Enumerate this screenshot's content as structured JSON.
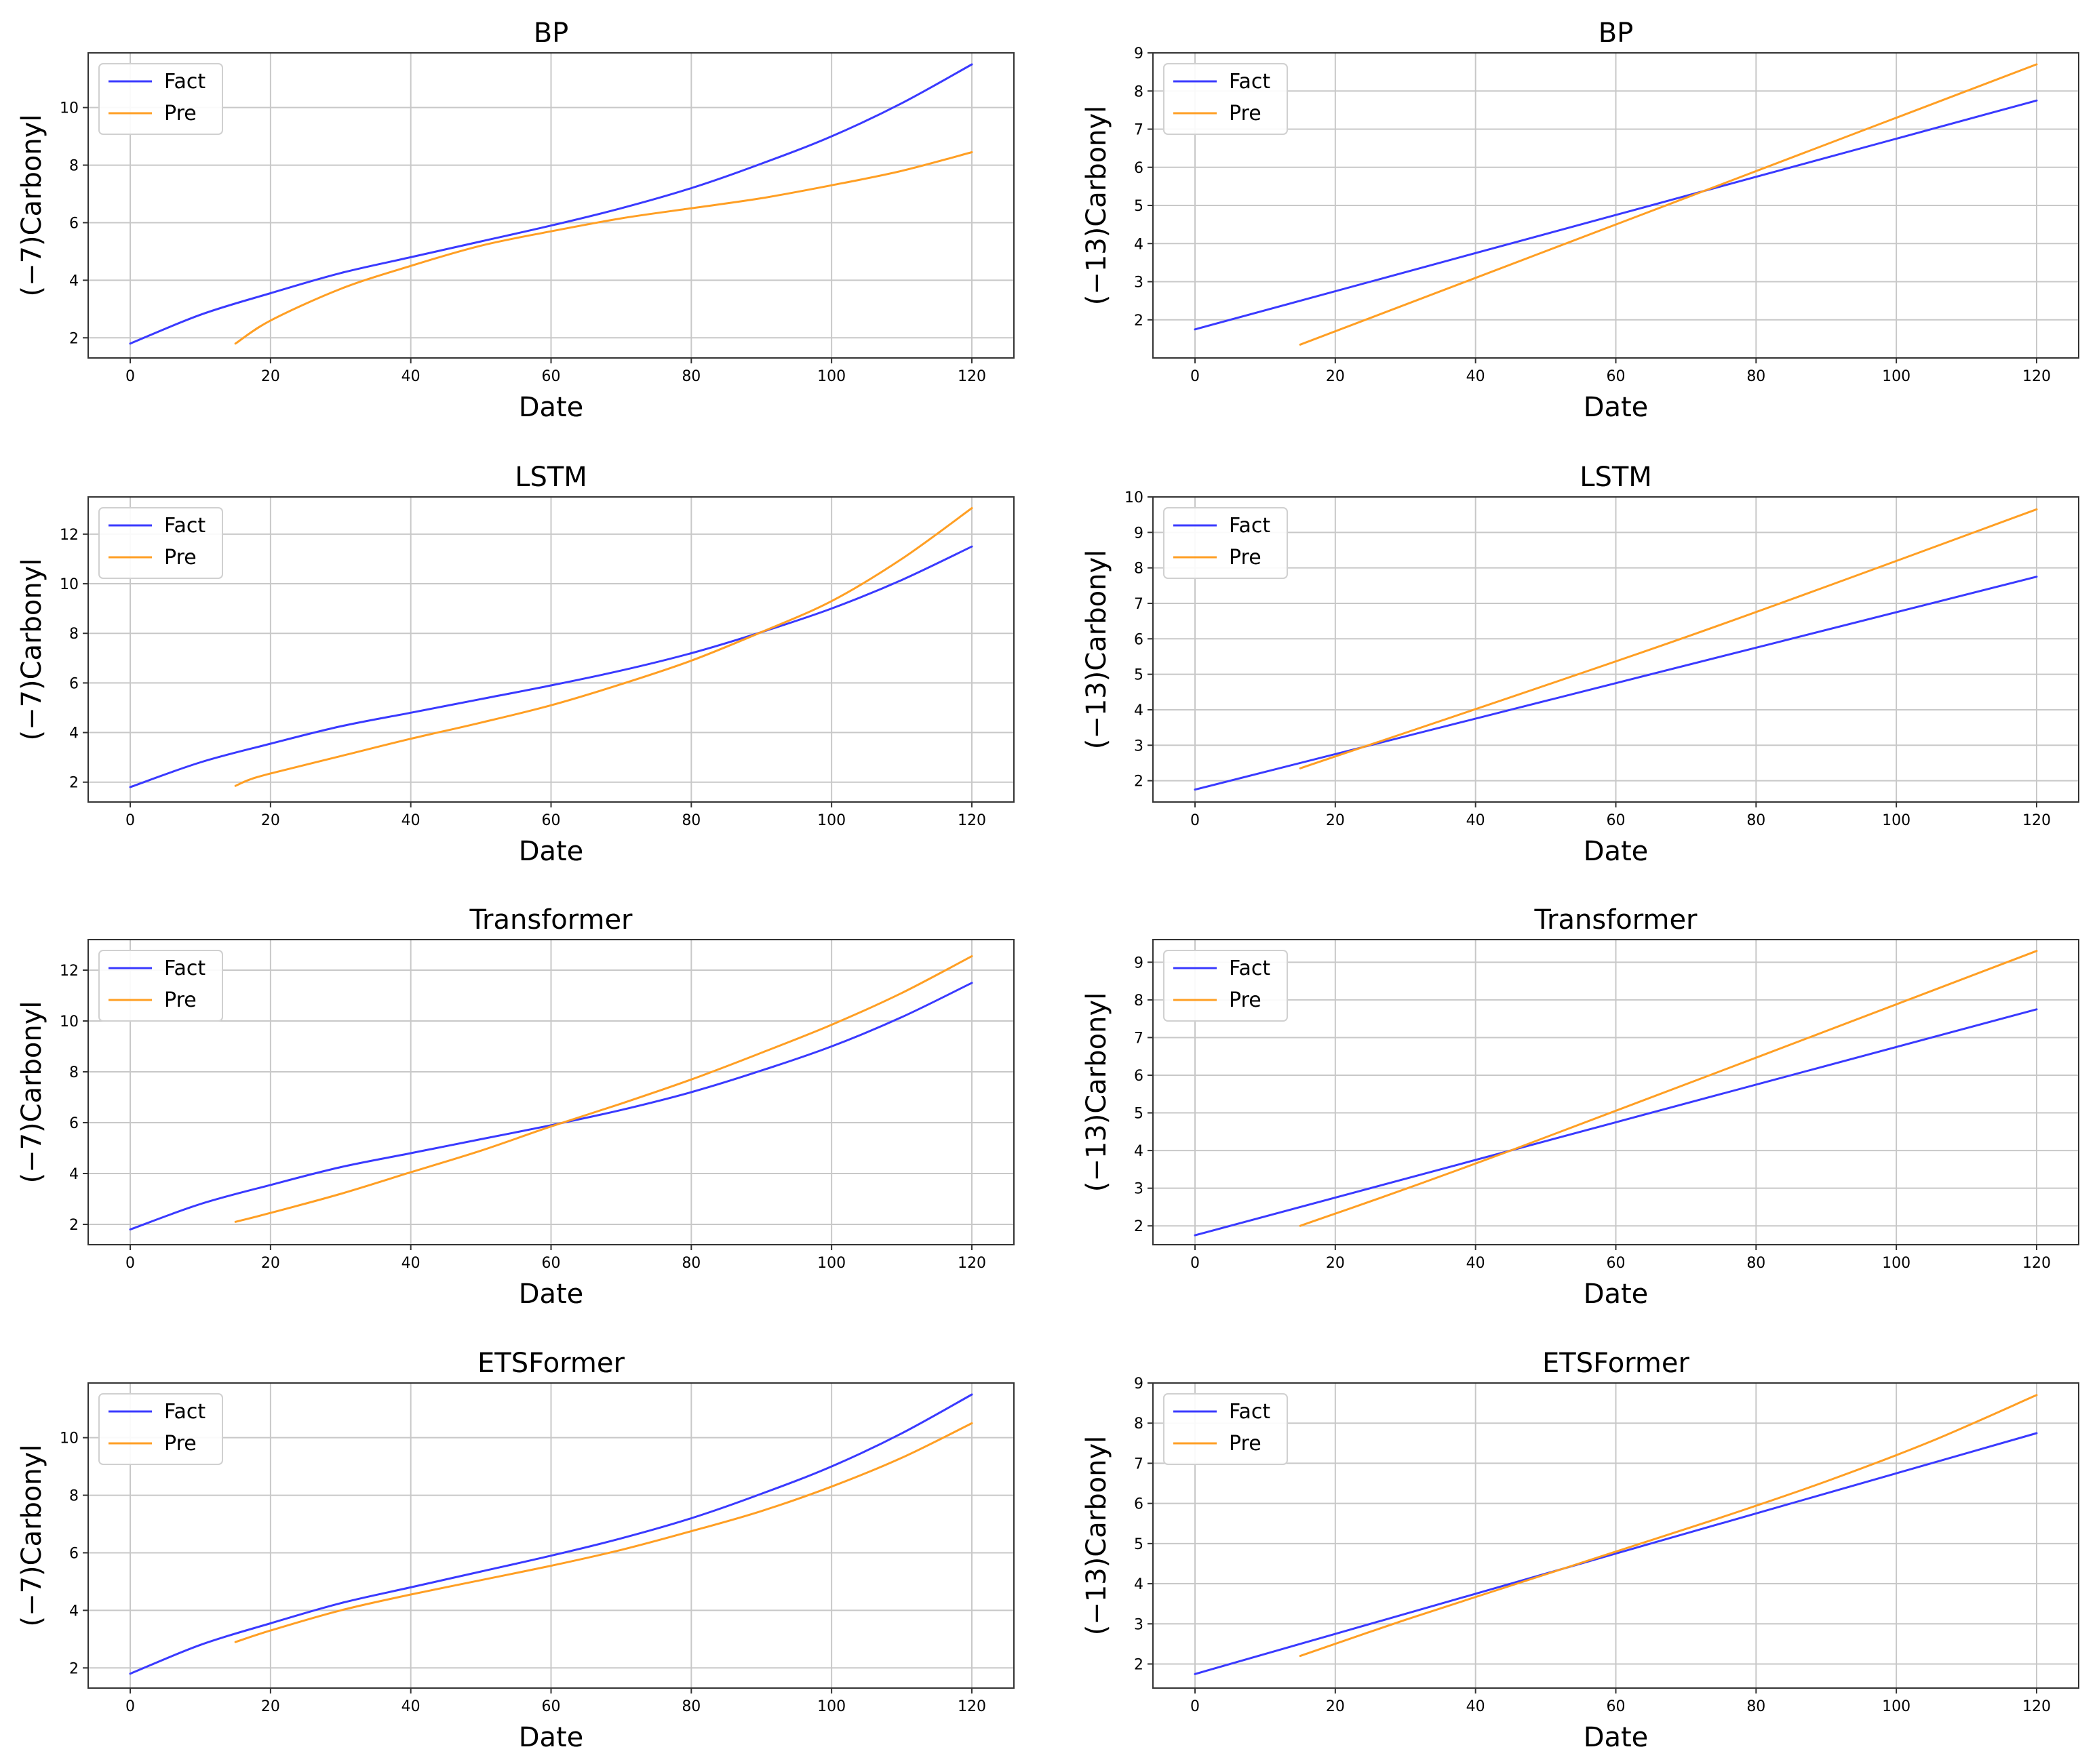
{
  "colors": {
    "fact": "#3a3aff",
    "pre": "#ff9f24",
    "grid": "#c8c8c8",
    "axes": "#333333"
  },
  "chart_data": [
    {
      "type": "line",
      "title": "BP",
      "xlabel": "Date",
      "ylabel": "(−7)Carbonyl",
      "xlim": [
        -6,
        126
      ],
      "ylim": [
        1.3,
        11.9
      ],
      "xticks": [
        0,
        20,
        40,
        60,
        80,
        100,
        120
      ],
      "yticks": [
        2,
        4,
        6,
        8,
        10
      ],
      "grid": true,
      "legend": "top-left",
      "series": [
        {
          "name": "Fact",
          "x": [
            0,
            10,
            20,
            30,
            40,
            50,
            60,
            70,
            80,
            90,
            100,
            110,
            120
          ],
          "y": [
            1.8,
            2.8,
            3.55,
            4.25,
            4.8,
            5.35,
            5.9,
            6.5,
            7.2,
            8.05,
            9.0,
            10.15,
            11.5
          ]
        },
        {
          "name": "Pre",
          "x": [
            15,
            20,
            30,
            40,
            50,
            60,
            70,
            80,
            90,
            100,
            110,
            120
          ],
          "y": [
            1.8,
            2.6,
            3.7,
            4.5,
            5.2,
            5.7,
            6.15,
            6.5,
            6.85,
            7.3,
            7.8,
            8.45
          ]
        }
      ]
    },
    {
      "type": "line",
      "title": "BP",
      "xlabel": "Date",
      "ylabel": "(−13)Carbonyl",
      "xlim": [
        -6,
        126
      ],
      "ylim": [
        1.0,
        9.0
      ],
      "xticks": [
        0,
        20,
        40,
        60,
        80,
        100,
        120
      ],
      "yticks": [
        2,
        3,
        4,
        5,
        6,
        7,
        8,
        9
      ],
      "grid": true,
      "legend": "top-left",
      "series": [
        {
          "name": "Fact",
          "x": [
            0,
            60,
            120
          ],
          "y": [
            1.75,
            4.75,
            7.75
          ]
        },
        {
          "name": "Pre",
          "x": [
            15,
            70,
            120
          ],
          "y": [
            1.35,
            5.2,
            8.7
          ]
        }
      ]
    },
    {
      "type": "line",
      "title": "LSTM",
      "xlabel": "Date",
      "ylabel": "(−7)Carbonyl",
      "xlim": [
        -6,
        126
      ],
      "ylim": [
        1.2,
        13.5
      ],
      "xticks": [
        0,
        20,
        40,
        60,
        80,
        100,
        120
      ],
      "yticks": [
        2,
        4,
        6,
        8,
        10,
        12
      ],
      "grid": true,
      "legend": "top-left",
      "series": [
        {
          "name": "Fact",
          "x": [
            0,
            10,
            20,
            30,
            40,
            50,
            60,
            70,
            80,
            90,
            100,
            110,
            120
          ],
          "y": [
            1.8,
            2.8,
            3.55,
            4.25,
            4.8,
            5.35,
            5.9,
            6.5,
            7.2,
            8.05,
            9.0,
            10.15,
            11.5
          ]
        },
        {
          "name": "Pre",
          "x": [
            15,
            17,
            20,
            30,
            40,
            50,
            60,
            70,
            80,
            90,
            100,
            110,
            120
          ],
          "y": [
            1.85,
            2.1,
            2.35,
            3.05,
            3.75,
            4.4,
            5.1,
            5.95,
            6.9,
            8.05,
            9.3,
            11.0,
            13.05
          ]
        }
      ]
    },
    {
      "type": "line",
      "title": "LSTM",
      "xlabel": "Date",
      "ylabel": "(−13)Carbonyl",
      "xlim": [
        -6,
        126
      ],
      "ylim": [
        1.4,
        10.0
      ],
      "xticks": [
        0,
        20,
        40,
        60,
        80,
        100,
        120
      ],
      "yticks": [
        2,
        3,
        4,
        5,
        6,
        7,
        8,
        9,
        10
      ],
      "grid": true,
      "legend": "top-left",
      "series": [
        {
          "name": "Fact",
          "x": [
            0,
            60,
            120
          ],
          "y": [
            1.75,
            4.75,
            7.75
          ]
        },
        {
          "name": "Pre",
          "x": [
            15,
            70,
            120
          ],
          "y": [
            2.35,
            6.05,
            9.65
          ]
        }
      ]
    },
    {
      "type": "line",
      "title": "Transformer",
      "xlabel": "Date",
      "ylabel": "(−7)Carbonyl",
      "xlim": [
        -6,
        126
      ],
      "ylim": [
        1.2,
        13.2
      ],
      "xticks": [
        0,
        20,
        40,
        60,
        80,
        100,
        120
      ],
      "yticks": [
        2,
        4,
        6,
        8,
        10,
        12
      ],
      "grid": true,
      "legend": "top-left",
      "series": [
        {
          "name": "Fact",
          "x": [
            0,
            10,
            20,
            30,
            40,
            50,
            60,
            70,
            80,
            90,
            100,
            110,
            120
          ],
          "y": [
            1.8,
            2.8,
            3.55,
            4.25,
            4.8,
            5.35,
            5.9,
            6.5,
            7.2,
            8.05,
            9.0,
            10.15,
            11.5
          ]
        },
        {
          "name": "Pre",
          "x": [
            15,
            20,
            30,
            40,
            50,
            60,
            70,
            80,
            90,
            100,
            110,
            120
          ],
          "y": [
            2.1,
            2.45,
            3.2,
            4.05,
            4.9,
            5.85,
            6.75,
            7.7,
            8.75,
            9.85,
            11.1,
            12.55
          ]
        }
      ]
    },
    {
      "type": "line",
      "title": "Transformer",
      "xlabel": "Date",
      "ylabel": "(−13)Carbonyl",
      "xlim": [
        -6,
        126
      ],
      "ylim": [
        1.5,
        9.6
      ],
      "xticks": [
        0,
        20,
        40,
        60,
        80,
        100,
        120
      ],
      "yticks": [
        2,
        3,
        4,
        5,
        6,
        7,
        8,
        9
      ],
      "grid": true,
      "legend": "top-left",
      "series": [
        {
          "name": "Fact",
          "x": [
            0,
            60,
            120
          ],
          "y": [
            1.75,
            4.75,
            7.75
          ]
        },
        {
          "name": "Pre",
          "x": [
            15,
            45,
            120
          ],
          "y": [
            2.0,
            4.0,
            9.3
          ]
        }
      ]
    },
    {
      "type": "line",
      "title": "ETSFormer",
      "xlabel": "Date",
      "ylabel": "(−7)Carbonyl",
      "xlim": [
        -6,
        126
      ],
      "ylim": [
        1.3,
        11.9
      ],
      "xticks": [
        0,
        20,
        40,
        60,
        80,
        100,
        120
      ],
      "yticks": [
        2,
        4,
        6,
        8,
        10
      ],
      "grid": true,
      "legend": "top-left",
      "series": [
        {
          "name": "Fact",
          "x": [
            0,
            10,
            20,
            30,
            40,
            50,
            60,
            70,
            80,
            90,
            100,
            110,
            120
          ],
          "y": [
            1.8,
            2.8,
            3.55,
            4.25,
            4.8,
            5.35,
            5.9,
            6.5,
            7.2,
            8.05,
            9.0,
            10.15,
            11.5
          ]
        },
        {
          "name": "Pre",
          "x": [
            15,
            20,
            30,
            40,
            50,
            60,
            70,
            80,
            90,
            100,
            110,
            120
          ],
          "y": [
            2.9,
            3.3,
            4.0,
            4.55,
            5.05,
            5.55,
            6.1,
            6.75,
            7.45,
            8.3,
            9.3,
            10.5
          ]
        }
      ]
    },
    {
      "type": "line",
      "title": "ETSFormer",
      "xlabel": "Date",
      "ylabel": "(−13)Carbonyl",
      "xlim": [
        -6,
        126
      ],
      "ylim": [
        1.4,
        9.0
      ],
      "xticks": [
        0,
        20,
        40,
        60,
        80,
        100,
        120
      ],
      "yticks": [
        2,
        3,
        4,
        5,
        6,
        7,
        8,
        9
      ],
      "grid": true,
      "legend": "top-left",
      "series": [
        {
          "name": "Fact",
          "x": [
            0,
            60,
            120
          ],
          "y": [
            1.75,
            4.75,
            7.75
          ]
        },
        {
          "name": "Pre",
          "x": [
            15,
            30,
            45,
            60,
            75,
            90,
            105,
            120
          ],
          "y": [
            2.2,
            3.1,
            3.95,
            4.8,
            5.65,
            6.55,
            7.55,
            8.7
          ]
        }
      ]
    }
  ]
}
